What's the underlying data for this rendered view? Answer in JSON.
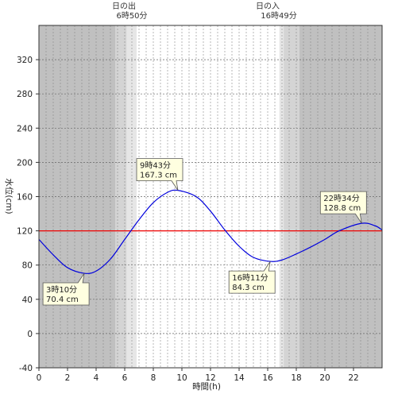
{
  "chart_data": {
    "type": "line",
    "title": "",
    "xlabel": "時間(h)",
    "ylabel": "水位(cm)",
    "xlim": [
      0,
      24
    ],
    "ylim": [
      -40,
      360
    ],
    "xticks": [
      0,
      2,
      4,
      6,
      8,
      10,
      12,
      14,
      16,
      18,
      20,
      22
    ],
    "yticks": [
      -40,
      0,
      40,
      80,
      120,
      160,
      200,
      240,
      280,
      320
    ],
    "grid": true,
    "series": [
      {
        "color": "#0000dd",
        "x": [
          0,
          1,
          2,
          3.17,
          4,
          5,
          6,
          7,
          8,
          9,
          9.72,
          11,
          12,
          13,
          14,
          15,
          16.18,
          17,
          18,
          19,
          20,
          21,
          22.57,
          23.5,
          24
        ],
        "y": [
          110,
          92,
          77,
          70.4,
          73,
          87,
          110,
          133,
          153,
          165,
          167.3,
          160,
          143,
          121,
          102,
          89,
          84.3,
          86,
          93,
          101,
          110,
          120,
          128.8,
          126,
          121
        ]
      }
    ],
    "reference_line": {
      "y": 120,
      "color": "#ee0000"
    },
    "sunrise": {
      "time": 6.833,
      "label": "日の出",
      "value": "6時50分"
    },
    "sunset": {
      "time": 16.817,
      "label": "日の入",
      "value": "16時49分"
    },
    "annotations": [
      {
        "time_text": "3時10分",
        "value_text": "70.4 cm",
        "x": 3.17,
        "y": 70.4,
        "placement": "below-left"
      },
      {
        "time_text": "9時43分",
        "value_text": "167.3 cm",
        "x": 9.72,
        "y": 167.3,
        "placement": "above-left"
      },
      {
        "time_text": "16時11分",
        "value_text": "84.3 cm",
        "x": 16.18,
        "y": 84.3,
        "placement": "below-left"
      },
      {
        "time_text": "22時34分",
        "value_text": "128.8 cm",
        "x": 22.57,
        "y": 128.8,
        "placement": "above-left"
      }
    ],
    "colors": {
      "night": "#c0c0c0",
      "twilight_outer": "#d4d4d4",
      "twilight_inner": "#e6e6e6",
      "day": "#ffffff",
      "annotation_bg": "#ffffe0"
    }
  }
}
